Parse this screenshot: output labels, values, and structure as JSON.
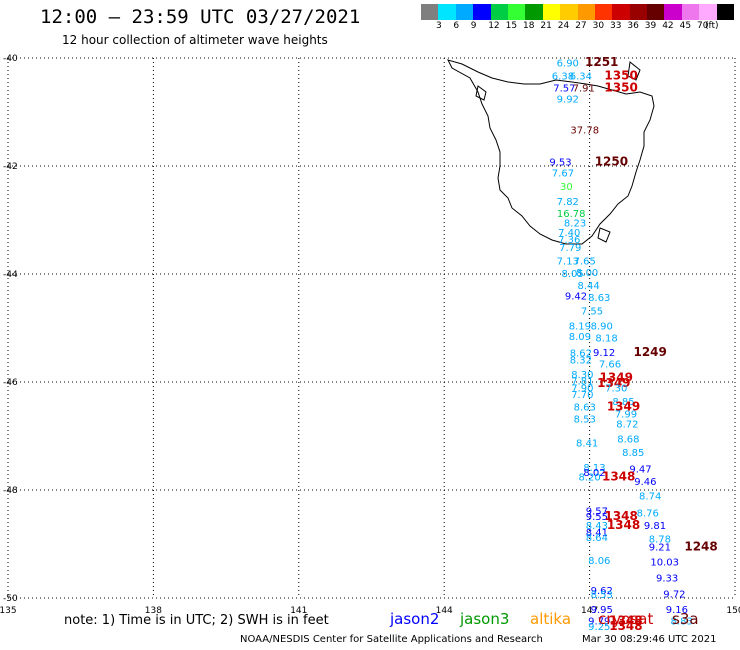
{
  "header": {
    "title": "12:00 – 23:59 UTC 03/27/2021",
    "subtitle": "12 hour collection of altimeter wave heights"
  },
  "scale": {
    "colors": [
      "#7f7f7f",
      "#00e5ff",
      "#00aaff",
      "#0000ff",
      "#00cc44",
      "#33ff33",
      "#009900",
      "#ffff00",
      "#ffcc00",
      "#ff9900",
      "#ff3300",
      "#cc0000",
      "#990000",
      "#660000",
      "#cc00cc",
      "#ee77ee",
      "#ffaaff",
      "#000000"
    ],
    "labels": [
      "3",
      "6",
      "9",
      "12",
      "15",
      "18",
      "21",
      "24",
      "27",
      "30",
      "33",
      "36",
      "39",
      "42",
      "45",
      "70"
    ],
    "unit": "(ft)"
  },
  "note": "note:  1) Time is in UTC;  2) SWH is in feet",
  "legend": [
    {
      "name": "jason2",
      "color": "#0000ff"
    },
    {
      "name": "jason3",
      "color": "#009900"
    },
    {
      "name": "altika",
      "color": "#ff9900"
    },
    {
      "name": "cryosat",
      "color": "#cc0000"
    },
    {
      "name": "s3a",
      "color": "#660000"
    }
  ],
  "footer": {
    "left": "NOAA/NESDIS Center for Satellite Applications and Research",
    "right": "Mar 30 08:29:46 UTC 2021"
  },
  "chart_data": {
    "type": "scatter",
    "title": "12:00 – 23:59 UTC 03/27/2021",
    "subtitle": "12 hour collection of altimeter wave heights",
    "xlim": [
      135,
      150
    ],
    "ylim": [
      -50,
      -40
    ],
    "x_ticks": [
      "135",
      "138",
      "141",
      "144",
      "147",
      "150"
    ],
    "y_ticks": [
      "-40",
      "-42",
      "-44",
      "-46",
      "-48",
      "-50"
    ],
    "grid": true,
    "points": [
      {
        "lon": 146.55,
        "lat": -40.08,
        "label": "6.90",
        "color": "#00aaff"
      },
      {
        "lon": 147.25,
        "lat": -40.07,
        "label": "1251",
        "color": "#660000",
        "bold": true
      },
      {
        "lon": 146.45,
        "lat": -40.32,
        "label": "6.38",
        "color": "#00aaff"
      },
      {
        "lon": 146.82,
        "lat": -40.32,
        "label": "6.34",
        "color": "#00aaff"
      },
      {
        "lon": 147.65,
        "lat": -40.32,
        "label": "1350",
        "color": "#cc0000",
        "bold": true
      },
      {
        "lon": 146.48,
        "lat": -40.55,
        "label": "7.57",
        "color": "#0000ff"
      },
      {
        "lon": 146.88,
        "lat": -40.55,
        "label": "7.91",
        "color": "#660000"
      },
      {
        "lon": 147.65,
        "lat": -40.55,
        "label": "1350",
        "color": "#cc0000",
        "bold": true
      },
      {
        "lon": 146.55,
        "lat": -40.75,
        "label": "9.92",
        "color": "#00aaff"
      },
      {
        "lon": 146.9,
        "lat": -41.32,
        "label": "37.78",
        "color": "#660000"
      },
      {
        "lon": 146.4,
        "lat": -41.92,
        "label": "9.53",
        "color": "#0000ff"
      },
      {
        "lon": 147.45,
        "lat": -41.92,
        "label": "1250",
        "color": "#660000",
        "bold": true
      },
      {
        "lon": 146.45,
        "lat": -42.12,
        "label": "7.67",
        "color": "#00aaff"
      },
      {
        "lon": 146.52,
        "lat": -42.37,
        "label": "30",
        "color": "#33ff33"
      },
      {
        "lon": 146.55,
        "lat": -42.65,
        "label": "7.82",
        "color": "#00aaff"
      },
      {
        "lon": 146.62,
        "lat": -42.87,
        "label": "16.78",
        "color": "#00cc44"
      },
      {
        "lon": 146.7,
        "lat": -43.05,
        "label": "8.23",
        "color": "#00aaff"
      },
      {
        "lon": 146.58,
        "lat": -43.22,
        "label": "7.40",
        "color": "#00aaff"
      },
      {
        "lon": 146.58,
        "lat": -43.35,
        "label": "7.36",
        "color": "#00aaff"
      },
      {
        "lon": 146.6,
        "lat": -43.5,
        "label": "7.79",
        "color": "#00aaff"
      },
      {
        "lon": 146.55,
        "lat": -43.75,
        "label": "7.13",
        "color": "#00aaff"
      },
      {
        "lon": 146.9,
        "lat": -43.75,
        "label": "7.65",
        "color": "#00aaff"
      },
      {
        "lon": 146.65,
        "lat": -43.98,
        "label": "8.05",
        "color": "#00aaff"
      },
      {
        "lon": 146.95,
        "lat": -43.96,
        "label": "8.00",
        "color": "#00aaff"
      },
      {
        "lon": 146.98,
        "lat": -44.2,
        "label": "8.44",
        "color": "#00aaff"
      },
      {
        "lon": 146.72,
        "lat": -44.4,
        "label": "9.42",
        "color": "#0000ff"
      },
      {
        "lon": 147.2,
        "lat": -44.43,
        "label": "8.63",
        "color": "#00aaff"
      },
      {
        "lon": 147.05,
        "lat": -44.68,
        "label": "7.55",
        "color": "#00aaff"
      },
      {
        "lon": 146.8,
        "lat": -44.95,
        "label": "8.19",
        "color": "#00aaff"
      },
      {
        "lon": 147.25,
        "lat": -44.95,
        "label": "8.90",
        "color": "#00aaff"
      },
      {
        "lon": 146.8,
        "lat": -45.15,
        "label": "8.09",
        "color": "#00aaff"
      },
      {
        "lon": 147.35,
        "lat": -45.18,
        "label": "8.18",
        "color": "#00aaff"
      },
      {
        "lon": 146.82,
        "lat": -45.45,
        "label": "8.62",
        "color": "#00aaff"
      },
      {
        "lon": 147.3,
        "lat": -45.44,
        "label": "9.12",
        "color": "#0000ff"
      },
      {
        "lon": 148.25,
        "lat": -45.44,
        "label": "1249",
        "color": "#660000",
        "bold": true
      },
      {
        "lon": 146.82,
        "lat": -45.58,
        "label": "8.32",
        "color": "#00aaff"
      },
      {
        "lon": 147.42,
        "lat": -45.66,
        "label": "7.66",
        "color": "#00aaff"
      },
      {
        "lon": 146.85,
        "lat": -45.85,
        "label": "8.30",
        "color": "#00aaff"
      },
      {
        "lon": 147.55,
        "lat": -45.92,
        "label": "1349",
        "color": "#cc0000",
        "bold": true
      },
      {
        "lon": 146.85,
        "lat": -45.97,
        "label": "7.81",
        "color": "#00aaff"
      },
      {
        "lon": 147.5,
        "lat": -46.02,
        "label": "1349",
        "color": "#cc0000",
        "bold": true
      },
      {
        "lon": 146.85,
        "lat": -46.1,
        "label": "7.90",
        "color": "#00aaff"
      },
      {
        "lon": 147.55,
        "lat": -46.1,
        "label": "7.30",
        "color": "#00aaff"
      },
      {
        "lon": 146.85,
        "lat": -46.22,
        "label": "7.70",
        "color": "#00aaff"
      },
      {
        "lon": 147.7,
        "lat": -46.35,
        "label": "8.85",
        "color": "#00aaff"
      },
      {
        "lon": 146.9,
        "lat": -46.45,
        "label": "8.63",
        "color": "#00aaff"
      },
      {
        "lon": 147.7,
        "lat": -46.45,
        "label": "1349",
        "color": "#cc0000",
        "bold": true
      },
      {
        "lon": 147.75,
        "lat": -46.58,
        "label": "7.99",
        "color": "#00aaff"
      },
      {
        "lon": 146.9,
        "lat": -46.68,
        "label": "8.53",
        "color": "#00aaff"
      },
      {
        "lon": 147.78,
        "lat": -46.77,
        "label": "8.72",
        "color": "#00aaff"
      },
      {
        "lon": 147.8,
        "lat": -47.05,
        "label": "8.68",
        "color": "#00aaff"
      },
      {
        "lon": 146.95,
        "lat": -47.12,
        "label": "8.41",
        "color": "#00aaff"
      },
      {
        "lon": 147.9,
        "lat": -47.3,
        "label": "8.85",
        "color": "#00aaff"
      },
      {
        "lon": 147.1,
        "lat": -47.57,
        "label": "8.13",
        "color": "#00aaff"
      },
      {
        "lon": 148.05,
        "lat": -47.6,
        "label": "9.47",
        "color": "#0000ff"
      },
      {
        "lon": 147.1,
        "lat": -47.67,
        "label": "8.02",
        "color": "#0000ff"
      },
      {
        "lon": 147.0,
        "lat": -47.75,
        "label": "8.20",
        "color": "#00aaff"
      },
      {
        "lon": 147.6,
        "lat": -47.75,
        "label": "1348",
        "color": "#cc0000",
        "bold": true
      },
      {
        "lon": 148.15,
        "lat": -47.83,
        "label": "9.46",
        "color": "#0000ff"
      },
      {
        "lon": 148.25,
        "lat": -48.1,
        "label": "8.74",
        "color": "#00aaff"
      },
      {
        "lon": 147.15,
        "lat": -48.38,
        "label": "9.57",
        "color": "#0000ff"
      },
      {
        "lon": 148.2,
        "lat": -48.42,
        "label": "8.76",
        "color": "#00aaff"
      },
      {
        "lon": 147.15,
        "lat": -48.48,
        "label": "9.55",
        "color": "#0000ff"
      },
      {
        "lon": 147.65,
        "lat": -48.48,
        "label": "1348",
        "color": "#cc0000",
        "bold": true
      },
      {
        "lon": 148.35,
        "lat": -48.65,
        "label": "9.81",
        "color": "#0000ff"
      },
      {
        "lon": 147.15,
        "lat": -48.65,
        "label": "8.43",
        "color": "#00aaff"
      },
      {
        "lon": 147.7,
        "lat": -48.65,
        "label": "1348",
        "color": "#cc0000",
        "bold": true
      },
      {
        "lon": 147.15,
        "lat": -48.78,
        "label": "8.41",
        "color": "#0000ff"
      },
      {
        "lon": 147.15,
        "lat": -48.87,
        "label": "8.64",
        "color": "#00aaff"
      },
      {
        "lon": 148.45,
        "lat": -48.9,
        "label": "8.78",
        "color": "#00aaff"
      },
      {
        "lon": 148.45,
        "lat": -49.05,
        "label": "9.21",
        "color": "#0000ff"
      },
      {
        "lon": 149.3,
        "lat": -49.05,
        "label": "1248",
        "color": "#660000",
        "bold": true
      },
      {
        "lon": 147.2,
        "lat": -49.3,
        "label": "8.06",
        "color": "#00aaff"
      },
      {
        "lon": 148.55,
        "lat": -49.32,
        "label": "10.03",
        "color": "#0000ff"
      },
      {
        "lon": 148.6,
        "lat": -49.62,
        "label": "9.33",
        "color": "#0000ff"
      },
      {
        "lon": 147.25,
        "lat": -49.85,
        "label": "9.62",
        "color": "#0000ff"
      },
      {
        "lon": 148.75,
        "lat": -49.92,
        "label": "9.72",
        "color": "#0000ff"
      },
      {
        "lon": 147.25,
        "lat": -49.93,
        "label": "8.53",
        "color": "#00aaff"
      },
      {
        "lon": 147.25,
        "lat": -50.2,
        "label": "9.95",
        "color": "#0000ff"
      },
      {
        "lon": 148.8,
        "lat": -50.2,
        "label": "9.16",
        "color": "#0000ff"
      },
      {
        "lon": 147.2,
        "lat": -50.42,
        "label": "9.79",
        "color": "#0000ff"
      },
      {
        "lon": 147.75,
        "lat": -50.42,
        "label": "1348",
        "color": "#cc0000",
        "bold": true
      },
      {
        "lon": 148.9,
        "lat": -50.42,
        "label": "8.83",
        "color": "#00aaff"
      },
      {
        "lon": 147.2,
        "lat": -50.52,
        "label": "9.25",
        "color": "#00aaff"
      },
      {
        "lon": 147.75,
        "lat": -50.52,
        "label": "1348",
        "color": "#cc0000",
        "bold": true
      }
    ]
  }
}
